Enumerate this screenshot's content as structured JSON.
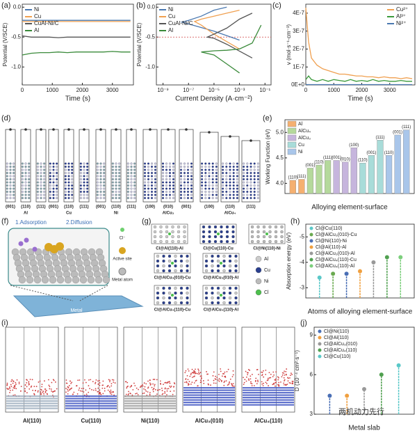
{
  "panel_labels": [
    "(a)",
    "(b)",
    "(c)",
    "(d)",
    "(e)",
    "(f)",
    "(g)",
    "(h)",
    "(i)",
    "(j)"
  ],
  "chart_data": [
    {
      "type": "line",
      "xlabel": "Time (s)",
      "ylabel": "Potential (V/SCE)",
      "x": [
        0,
        300,
        600,
        900,
        1200,
        1500,
        1800,
        2100,
        2400,
        2700,
        3000,
        3300,
        3600
      ],
      "xlim": [
        0,
        3700
      ],
      "xticks": [
        0,
        1000,
        2000,
        3000
      ],
      "ylim": [
        -1.3,
        0.05
      ],
      "yticks": [
        {
          "value": 0,
          "label": "0.0"
        },
        {
          "value": -0.5,
          "label": "-0.5"
        },
        {
          "value": -1,
          "label": "-1.0"
        }
      ],
      "legend": "upper left",
      "series": [
        {
          "name": "Ni",
          "color": "#4a78b0",
          "values": [
            -0.22,
            -0.22,
            -0.22,
            -0.22,
            -0.22,
            -0.22,
            -0.22,
            -0.22,
            -0.22,
            -0.22,
            -0.22,
            -0.22,
            -0.22
          ]
        },
        {
          "name": "Cu",
          "color": "#f0a050",
          "values": [
            -0.24,
            -0.24,
            -0.24,
            -0.24,
            -0.24,
            -0.24,
            -0.24,
            -0.24,
            -0.24,
            -0.24,
            -0.24,
            -0.24,
            -0.24
          ]
        },
        {
          "name": "CuAl-Ni/C",
          "color": "#555555",
          "values": [
            -0.48,
            -0.5,
            -0.5,
            -0.5,
            -0.51,
            -0.5,
            -0.5,
            -0.5,
            -0.5,
            -0.5,
            -0.5,
            -0.5,
            -0.5
          ]
        },
        {
          "name": "Al",
          "color": "#3a8a3a",
          "values": [
            -0.8,
            -0.77,
            -0.76,
            -0.76,
            -0.75,
            -0.76,
            -0.75,
            -0.75,
            -0.75,
            -0.75,
            -0.74,
            -0.75,
            -0.75
          ]
        }
      ]
    },
    {
      "type": "line",
      "xscale": "log",
      "xlabel": "Current Density (A·cm⁻²)",
      "ylabel": "Potential (V/SCE)",
      "xlim": [
        3e-10,
        0.3
      ],
      "xticks": [
        {
          "value": 1e-09,
          "label": "10⁻⁹"
        },
        {
          "value": 1e-07,
          "label": "10⁻⁷"
        },
        {
          "value": 1e-05,
          "label": "10⁻⁵"
        },
        {
          "value": 0.001,
          "label": "10⁻³"
        },
        {
          "value": 0.1,
          "label": "10⁻¹"
        }
      ],
      "ylim": [
        -1.3,
        0.05
      ],
      "yticks": [
        {
          "value": 0,
          "label": "0.0"
        },
        {
          "value": -0.5,
          "label": "-0.5"
        },
        {
          "value": -1,
          "label": "-1.0"
        }
      ],
      "legend": "upper left",
      "hline": -0.5,
      "series": [
        {
          "name": "Ni",
          "color": "#4a78b0",
          "x": [
            0.001,
            1e-05,
            1e-07,
            3e-08,
            1e-07,
            1e-06,
            1e-05,
            0.0001
          ],
          "values": [
            -0.55,
            -0.4,
            -0.28,
            -0.25,
            -0.22,
            -0.15,
            -0.05,
            0
          ]
        },
        {
          "name": "Cu",
          "color": "#f0a050",
          "x": [
            0.001,
            1e-05,
            1e-06,
            3e-07,
            1e-06,
            1e-05,
            0.0001,
            0.001
          ],
          "values": [
            -0.7,
            -0.45,
            -0.3,
            -0.24,
            -0.2,
            -0.15,
            -0.1,
            -0.05
          ]
        },
        {
          "name": "CuAl-Ni/C",
          "color": "#555555",
          "x": [
            0.01,
            0.0001,
            1e-05,
            3e-06,
            1e-05,
            0.0001,
            0.001,
            0.01
          ],
          "values": [
            -0.85,
            -0.62,
            -0.52,
            -0.5,
            -0.45,
            -0.35,
            -0.2,
            -0.1
          ]
        },
        {
          "name": "Al",
          "color": "#3a8a3a",
          "x": [
            0.001,
            0.0001,
            1e-05,
            1e-06,
            1e-05,
            0.0001,
            0.001,
            0.01,
            0.05
          ],
          "values": [
            -1.1,
            -0.95,
            -0.8,
            -0.75,
            -0.73,
            -0.72,
            -0.7,
            -0.6,
            -0.3
          ]
        }
      ]
    },
    {
      "type": "line",
      "xlabel": "Time (s)",
      "ylabel": "v (mol·s⁻¹·cm⁻³)",
      "x": [
        0,
        100,
        200,
        400,
        600,
        800,
        1000,
        1200,
        1400,
        1600,
        1800,
        2000,
        2200,
        2400,
        2600,
        2800,
        3000,
        3200,
        3400,
        3600,
        3800
      ],
      "xlim": [
        0,
        3900
      ],
      "xticks": [
        0,
        1000,
        2000,
        3000
      ],
      "ylim": [
        0,
        4.5e-07
      ],
      "yticks": [
        {
          "value": 0,
          "label": "0E+0"
        },
        {
          "value": 1e-07,
          "label": "1E-7"
        },
        {
          "value": 2e-07,
          "label": "2E-7"
        },
        {
          "value": 3e-07,
          "label": "3E-7"
        },
        {
          "value": 4e-07,
          "label": "4E-7"
        }
      ],
      "legend": "upper right",
      "series": [
        {
          "name": "Cu²⁺",
          "color": "#f0a050",
          "values": [
            4.3e-07,
            2.4e-07,
            1.5e-07,
            1.1e-07,
            9e-08,
            8e-08,
            7e-08,
            6e-08,
            6e-08,
            5.5e-08,
            5e-08,
            5e-08,
            4.5e-08,
            4.5e-08,
            4e-08,
            4.5e-08,
            4e-08,
            4e-08,
            3.5e-08,
            4e-08,
            3.5e-08
          ]
        },
        {
          "name": "Al³⁺",
          "color": "#3a9a3a",
          "values": [
            3e-08,
            5e-08,
            3e-08,
            2e-08,
            3e-08,
            2e-08,
            3e-08,
            2.5e-08,
            2e-08,
            3e-08,
            2e-08,
            2.5e-08,
            2e-08,
            3e-08,
            2e-08,
            2.5e-08,
            2e-08,
            2e-08,
            2.5e-08,
            2e-08,
            2e-08
          ]
        },
        {
          "name": "Ni²⁺",
          "color": "#4a78b0",
          "values": [
            2e-09,
            2e-09,
            2e-09,
            2e-09,
            2e-09,
            2e-09,
            2e-09,
            2e-09,
            2e-09,
            2e-09,
            2e-09,
            2e-09,
            2e-09,
            2e-09,
            2e-09,
            2e-09,
            2e-09,
            2e-09,
            2e-09,
            2e-09,
            2e-09
          ]
        }
      ]
    },
    {
      "type": "bar",
      "xlabel": "Alloying element-surface",
      "ylabel": "Working Function (eV)",
      "ylim": [
        3.8,
        5.25
      ],
      "yticks": [
        {
          "value": 4,
          "label": "4.0"
        },
        4.5,
        {
          "value": 5,
          "label": "5.0"
        }
      ],
      "legend": "upper left",
      "legend_items": [
        {
          "name": "Al",
          "color": "#f5b070"
        },
        {
          "name": "AlCu₄",
          "color": "#b5d99c"
        },
        {
          "name": "AlCu₃",
          "color": "#c6b5dd"
        },
        {
          "name": "Cu",
          "color": "#a8dcd9"
        },
        {
          "name": "Ni",
          "color": "#a9c6ea"
        }
      ],
      "categories": [
        "(110)",
        "(111)",
        "(001)",
        "(110)",
        "(111)",
        "(001)",
        "(010)",
        "(100)",
        "(110)",
        "(001)",
        "(111)",
        "(110)",
        "(001)",
        "(111)"
      ],
      "values": [
        4.06,
        4.08,
        4.3,
        4.36,
        4.45,
        4.45,
        4.42,
        4.7,
        4.4,
        4.55,
        4.85,
        4.55,
        4.95,
        5.05
      ],
      "colors": [
        "#f5b070",
        "#f5b070",
        "#b5d99c",
        "#b5d99c",
        "#b5d99c",
        "#c6b5dd",
        "#c6b5dd",
        "#c6b5dd",
        "#a8dcd9",
        "#a8dcd9",
        "#a8dcd9",
        "#a9c6ea",
        "#a9c6ea",
        "#a9c6ea"
      ]
    },
    {
      "type": "lollipop",
      "xlabel": "Atoms of alloying element-surface",
      "ylabel": "Absorption energy (eV)",
      "ylim": [
        -2.6,
        -5.5
      ],
      "yticks": [
        -5,
        -4,
        -3
      ],
      "legend": "upper left",
      "categories": [
        "Cl@Cu(110)",
        "Cl@AlCu₃(010)-Cu",
        "Cl@Ni(110)-Ni",
        "Cl@Al(110)-Al",
        "Cl@AlCu₃(010)-Al",
        "Cl@AlCu₄(110)-Cu",
        "Cl@AlCu₄(110)-Al"
      ],
      "values": [
        -3.4,
        -3.55,
        -3.55,
        -3.65,
        -4.0,
        -4.2,
        -4.2
      ],
      "colors": [
        "#5ac8c8",
        "#6aaa50",
        "#4a6fb5",
        "#f0a040",
        "#999999",
        "#50a050",
        "#7ccf7c"
      ]
    },
    {
      "type": "lollipop",
      "xlabel": "Metal slab",
      "ylabel": "D (10⁻⁴ cm²·s⁻¹)",
      "ylim": [
        3,
        9.6
      ],
      "yticks": [
        3,
        6,
        9
      ],
      "legend": "upper left",
      "categories": [
        "Cl@Ni(110)",
        "Cl@Al(110)",
        "Cl@AlCu₃(010)",
        "Cl@AlCu₄(110)",
        "Cl@Cu(110)"
      ],
      "values": [
        4.4,
        4.4,
        4.9,
        6.0,
        6.7
      ],
      "colors": [
        "#4a6fb5",
        "#f0a040",
        "#999999",
        "#50a050",
        "#5ac8c8"
      ]
    }
  ],
  "schematic_d": {
    "groups": [
      {
        "name": "Al",
        "facets": [
          "(001)",
          "(110)",
          "(111)"
        ]
      },
      {
        "name": "Cu",
        "facets": [
          "(001)",
          "(110)",
          "(111)"
        ]
      },
      {
        "name": "Ni",
        "facets": [
          "(001)",
          "(110)",
          "(111)"
        ]
      },
      {
        "name": "AlCu₃",
        "facets": [
          "(100)",
          "(010)",
          "(001)"
        ]
      },
      {
        "name": "AlCu₄",
        "facets": [
          "(100)",
          "(110)",
          "(111)"
        ]
      }
    ]
  },
  "schematic_f": {
    "steps": [
      "1.Adsorption",
      "2.Diffusion"
    ],
    "legend": [
      "Cl⁻",
      "Active site",
      "Metal atom"
    ],
    "slab": "Metal"
  },
  "schematic_g": {
    "labels": [
      "Cl@Al(110)-Al",
      "Cl@Cu(110)-Cu",
      "Cl@Ni(110)-Ni",
      "Cl@AlCu₃(010)-Cu",
      "Cl@AlCu₃(010)-Al",
      "Cl@AlCu₄(110)-Cu",
      "Cl@AlCu₄(110)-Al"
    ],
    "legend": [
      {
        "name": "Al",
        "color": "#cccccc"
      },
      {
        "name": "Cu",
        "color": "#2a3f8f"
      },
      {
        "name": "Ni",
        "color": "#bbbbbb"
      },
      {
        "name": "Cl",
        "color": "#4cc04c"
      }
    ]
  },
  "schematic_i": {
    "labels": [
      "Al(110)",
      "Cu(110)",
      "Ni(110)",
      "AlCu₃(010)",
      "AlCu₄(110)"
    ]
  },
  "watermark": "两机动力先行"
}
